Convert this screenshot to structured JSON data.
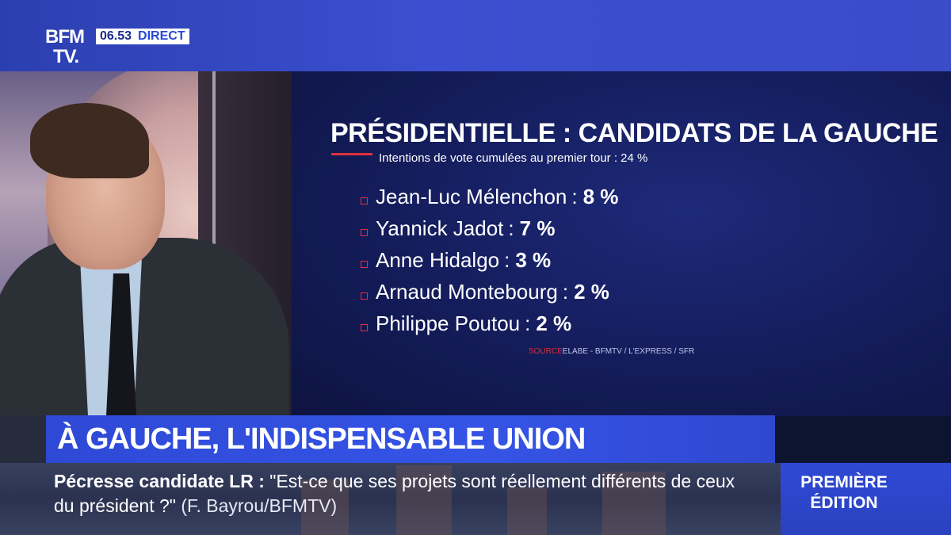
{
  "channel": {
    "logo_line1": "BFM",
    "logo_line2": "TV.",
    "time": "06.53",
    "live_label": "DIRECT"
  },
  "graphic": {
    "title": "PRÉSIDENTIELLE : CANDIDATS DE LA GAUCHE",
    "subtitle": "Intentions de vote cumulées au premier tour : 24 %",
    "candidates": [
      {
        "name": "Jean-Luc Mélenchon",
        "percent": "8 %"
      },
      {
        "name": "Yannick Jadot",
        "percent": "7 %"
      },
      {
        "name": "Anne Hidalgo",
        "percent": "3 %"
      },
      {
        "name": "Arnaud Montebourg",
        "percent": "2 %"
      },
      {
        "name": "Philippe Poutou",
        "percent": "2 %"
      }
    ],
    "source_label": "SOURCE",
    "source_text": "ELABE - BFMTV / L'EXPRESS / SFR",
    "accent_color": "#e0303a"
  },
  "headline": "À GAUCHE, L'INDISPENSABLE UNION",
  "ticker": {
    "lead": "Pécresse candidate LR :",
    "quote": "\"Est-ce que ses projets sont réellement différents de ceux du président ?\"",
    "attribution": "(F. Bayrou/BFMTV)"
  },
  "edition": {
    "line1": "PREMIÈRE",
    "line2": "ÉDITION"
  }
}
